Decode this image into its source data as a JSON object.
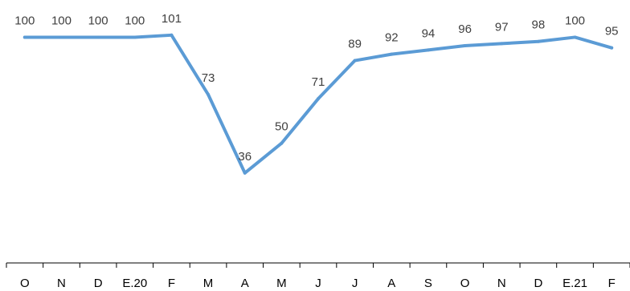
{
  "chart_data": {
    "type": "line",
    "title": "",
    "xlabel": "",
    "ylabel": "",
    "categories": [
      "O",
      "N",
      "D",
      "E.20",
      "F",
      "M",
      "A",
      "M",
      "J",
      "J",
      "A",
      "S",
      "O",
      "N",
      "D",
      "E.21",
      "F"
    ],
    "series": [
      {
        "values": [
          100,
          100,
          100,
          100,
          101,
          73,
          36,
          50,
          71,
          89,
          92,
          94,
          96,
          97,
          98,
          100,
          95
        ]
      }
    ],
    "ylim": [
      0,
      110
    ],
    "grid": false,
    "legend": "none",
    "data_labels": true,
    "line_color": "#5B9BD5",
    "axis_color": "#000000",
    "label_color": "#404040"
  }
}
